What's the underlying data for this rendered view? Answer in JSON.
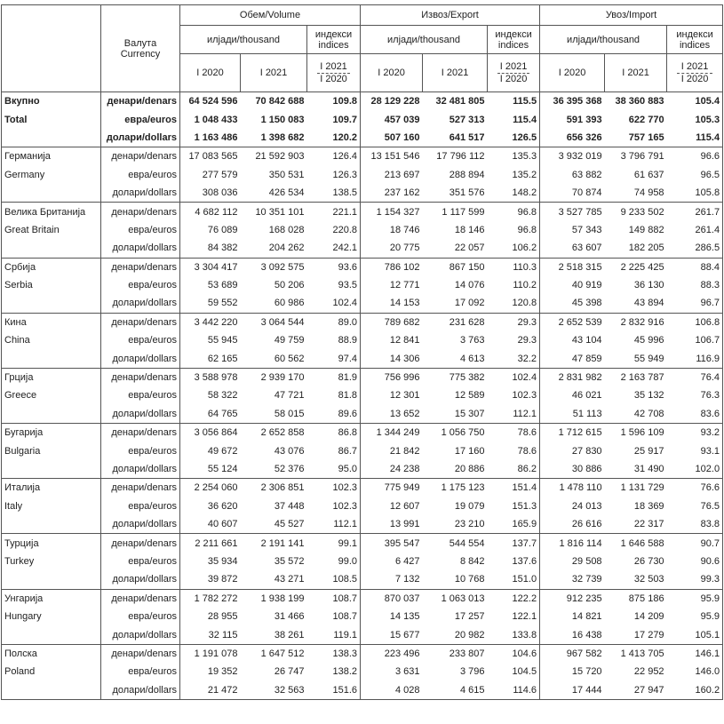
{
  "header": {
    "currency": [
      "Валута",
      "Currency"
    ],
    "groups": [
      "Обем/Volume",
      "Извоз/Export",
      "Увоз/Import"
    ],
    "thousand": "илјади/thousand",
    "indices": [
      "индекси",
      "indices"
    ],
    "years": [
      "I 2020",
      "I 2021"
    ],
    "ratio": [
      "I 2021",
      "I 2020"
    ]
  },
  "currencies": [
    "денари/denars",
    "евра/euros",
    "долари/dollars"
  ],
  "table": {
    "groups": [
      {
        "name": [
          "Вкупно",
          "Total"
        ],
        "rows": [
          [
            "64 524 596",
            "70 842 688",
            "109.8",
            "28 129 228",
            "32 481 805",
            "115.5",
            "36 395 368",
            "38 360 883",
            "105.4"
          ],
          [
            "1 048 433",
            "1 150 083",
            "109.7",
            "457 039",
            "527 313",
            "115.4",
            "591 393",
            "622 770",
            "105.3"
          ],
          [
            "1 163 486",
            "1 398 682",
            "120.2",
            "507 160",
            "641 517",
            "126.5",
            "656 326",
            "757 165",
            "115.4"
          ]
        ]
      },
      {
        "name": [
          "Германија",
          "Germany"
        ],
        "rows": [
          [
            "17 083 565",
            "21 592 903",
            "126.4",
            "13 151 546",
            "17 796 112",
            "135.3",
            "3 932 019",
            "3 796 791",
            "96.6"
          ],
          [
            "277 579",
            "350 531",
            "126.3",
            "213 697",
            "288 894",
            "135.2",
            "63 882",
            "61 637",
            "96.5"
          ],
          [
            "308 036",
            "426 534",
            "138.5",
            "237 162",
            "351 576",
            "148.2",
            "70 874",
            "74 958",
            "105.8"
          ]
        ]
      },
      {
        "name": [
          "Велика Британија",
          "Great Britain"
        ],
        "rows": [
          [
            "4 682 112",
            "10 351 101",
            "221.1",
            "1 154 327",
            "1 117 599",
            "96.8",
            "3 527 785",
            "9 233 502",
            "261.7"
          ],
          [
            "76 089",
            "168 028",
            "220.8",
            "18 746",
            "18 146",
            "96.8",
            "57 343",
            "149 882",
            "261.4"
          ],
          [
            "84 382",
            "204 262",
            "242.1",
            "20 775",
            "22 057",
            "106.2",
            "63 607",
            "182 205",
            "286.5"
          ]
        ]
      },
      {
        "name": [
          "Србија",
          "Serbia"
        ],
        "rows": [
          [
            "3 304 417",
            "3 092 575",
            "93.6",
            "786 102",
            "867 150",
            "110.3",
            "2 518 315",
            "2 225 425",
            "88.4"
          ],
          [
            "53 689",
            "50 206",
            "93.5",
            "12 771",
            "14 076",
            "110.2",
            "40 919",
            "36 130",
            "88.3"
          ],
          [
            "59 552",
            "60 986",
            "102.4",
            "14 153",
            "17 092",
            "120.8",
            "45 398",
            "43 894",
            "96.7"
          ]
        ]
      },
      {
        "name": [
          "Кина",
          "China"
        ],
        "rows": [
          [
            "3 442 220",
            "3 064 544",
            "89.0",
            "789 682",
            "231 628",
            "29.3",
            "2 652 539",
            "2 832 916",
            "106.8"
          ],
          [
            "55 945",
            "49 759",
            "88.9",
            "12 841",
            "3 763",
            "29.3",
            "43 104",
            "45 996",
            "106.7"
          ],
          [
            "62 165",
            "60 562",
            "97.4",
            "14 306",
            "4 613",
            "32.2",
            "47 859",
            "55 949",
            "116.9"
          ]
        ]
      },
      {
        "name": [
          "Грција",
          "Greece"
        ],
        "rows": [
          [
            "3 588 978",
            "2 939 170",
            "81.9",
            "756 996",
            "775 382",
            "102.4",
            "2 831 982",
            "2 163 787",
            "76.4"
          ],
          [
            "58 322",
            "47 721",
            "81.8",
            "12 301",
            "12 589",
            "102.3",
            "46 021",
            "35 132",
            "76.3"
          ],
          [
            "64 765",
            "58 015",
            "89.6",
            "13 652",
            "15 307",
            "112.1",
            "51 113",
            "42 708",
            "83.6"
          ]
        ]
      },
      {
        "name": [
          "Бугарија",
          "Bulgaria"
        ],
        "rows": [
          [
            "3 056 864",
            "2 652 858",
            "86.8",
            "1 344 249",
            "1 056 750",
            "78.6",
            "1 712 615",
            "1 596 109",
            "93.2"
          ],
          [
            "49 672",
            "43 076",
            "86.7",
            "21 842",
            "17 160",
            "78.6",
            "27 830",
            "25 917",
            "93.1"
          ],
          [
            "55 124",
            "52 376",
            "95.0",
            "24 238",
            "20 886",
            "86.2",
            "30 886",
            "31 490",
            "102.0"
          ]
        ]
      },
      {
        "name": [
          "Италија",
          "Italy"
        ],
        "rows": [
          [
            "2 254 060",
            "2 306 851",
            "102.3",
            "775 949",
            "1 175 123",
            "151.4",
            "1 478 110",
            "1 131 729",
            "76.6"
          ],
          [
            "36 620",
            "37 448",
            "102.3",
            "12 607",
            "19 079",
            "151.3",
            "24 013",
            "18 369",
            "76.5"
          ],
          [
            "40 607",
            "45 527",
            "112.1",
            "13 991",
            "23 210",
            "165.9",
            "26 616",
            "22 317",
            "83.8"
          ]
        ]
      },
      {
        "name": [
          "Турција",
          "Turkey"
        ],
        "rows": [
          [
            "2 211 661",
            "2 191 141",
            "99.1",
            "395 547",
            "544 554",
            "137.7",
            "1 816 114",
            "1 646 588",
            "90.7"
          ],
          [
            "35 934",
            "35 572",
            "99.0",
            "6 427",
            "8 842",
            "137.6",
            "29 508",
            "26 730",
            "90.6"
          ],
          [
            "39 872",
            "43 271",
            "108.5",
            "7 132",
            "10 768",
            "151.0",
            "32 739",
            "32 503",
            "99.3"
          ]
        ]
      },
      {
        "name": [
          "Унгарија",
          "Hungary"
        ],
        "rows": [
          [
            "1 782 272",
            "1 938 199",
            "108.7",
            "870 037",
            "1 063 013",
            "122.2",
            "912 235",
            "875 186",
            "95.9"
          ],
          [
            "28 955",
            "31 466",
            "108.7",
            "14 135",
            "17 257",
            "122.1",
            "14 821",
            "14 209",
            "95.9"
          ],
          [
            "32 115",
            "38 261",
            "119.1",
            "15 677",
            "20 982",
            "133.8",
            "16 438",
            "17 279",
            "105.1"
          ]
        ]
      },
      {
        "name": [
          "Полска",
          "Poland"
        ],
        "rows": [
          [
            "1 191 078",
            "1 647 512",
            "138.3",
            "223 496",
            "233 807",
            "104.6",
            "967 582",
            "1 413 705",
            "146.1"
          ],
          [
            "19 352",
            "26 747",
            "138.2",
            "3 631",
            "3 796",
            "104.5",
            "15 720",
            "22 952",
            "146.0"
          ],
          [
            "21 472",
            "32 563",
            "151.6",
            "4 028",
            "4 615",
            "114.6",
            "17 444",
            "27 947",
            "160.2"
          ]
        ]
      }
    ]
  }
}
